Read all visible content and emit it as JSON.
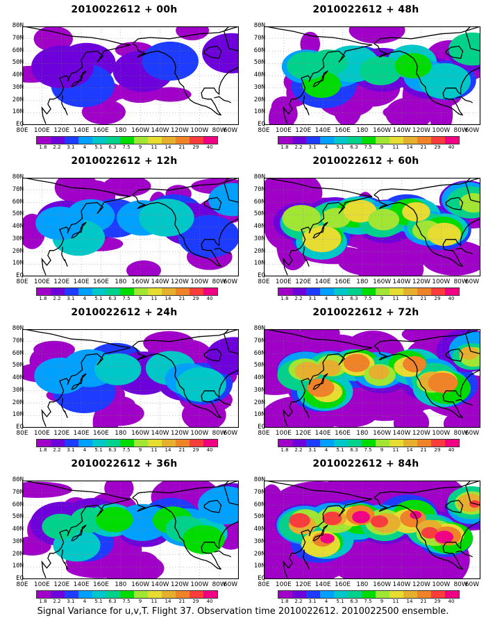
{
  "panels": [
    {
      "title": "2010022612 + 00h",
      "level": 1
    },
    {
      "title": "2010022612 + 48h",
      "level": 3
    },
    {
      "title": "2010022612 + 12h",
      "level": 2
    },
    {
      "title": "2010022612 + 60h",
      "level": 4
    },
    {
      "title": "2010022612 + 24h",
      "level": 2
    },
    {
      "title": "2010022612 + 72h",
      "level": 5
    },
    {
      "title": "2010022612 + 36h",
      "level": 3
    },
    {
      "title": "2010022612 + 84h",
      "level": 6
    }
  ],
  "lat_labels": [
    "80N",
    "70N",
    "60N",
    "50N",
    "40N",
    "30N",
    "20N",
    "10N",
    "EQ"
  ],
  "lon_labels": [
    "80E",
    "100E",
    "120E",
    "140E",
    "160E",
    "180",
    "160W",
    "140W",
    "120W",
    "100W",
    "80W",
    "60W"
  ],
  "colorbar": {
    "labels": [
      "1.8",
      "2.2",
      "3.1",
      "4",
      "5.1",
      "6.3",
      "7.5",
      "9",
      "11",
      "14",
      "21",
      "29",
      "40"
    ],
    "colors": [
      "#a000c8",
      "#6e00dc",
      "#1e3cff",
      "#00a0ff",
      "#00c8c8",
      "#00d28c",
      "#00dc00",
      "#a0e632",
      "#e6dc32",
      "#e6af2d",
      "#f08228",
      "#fa3c3c",
      "#f00082"
    ]
  },
  "caption": "Signal Variance for u,v,T. Flight 37. Observation time 2010022612. 2010022500 ensemble."
}
